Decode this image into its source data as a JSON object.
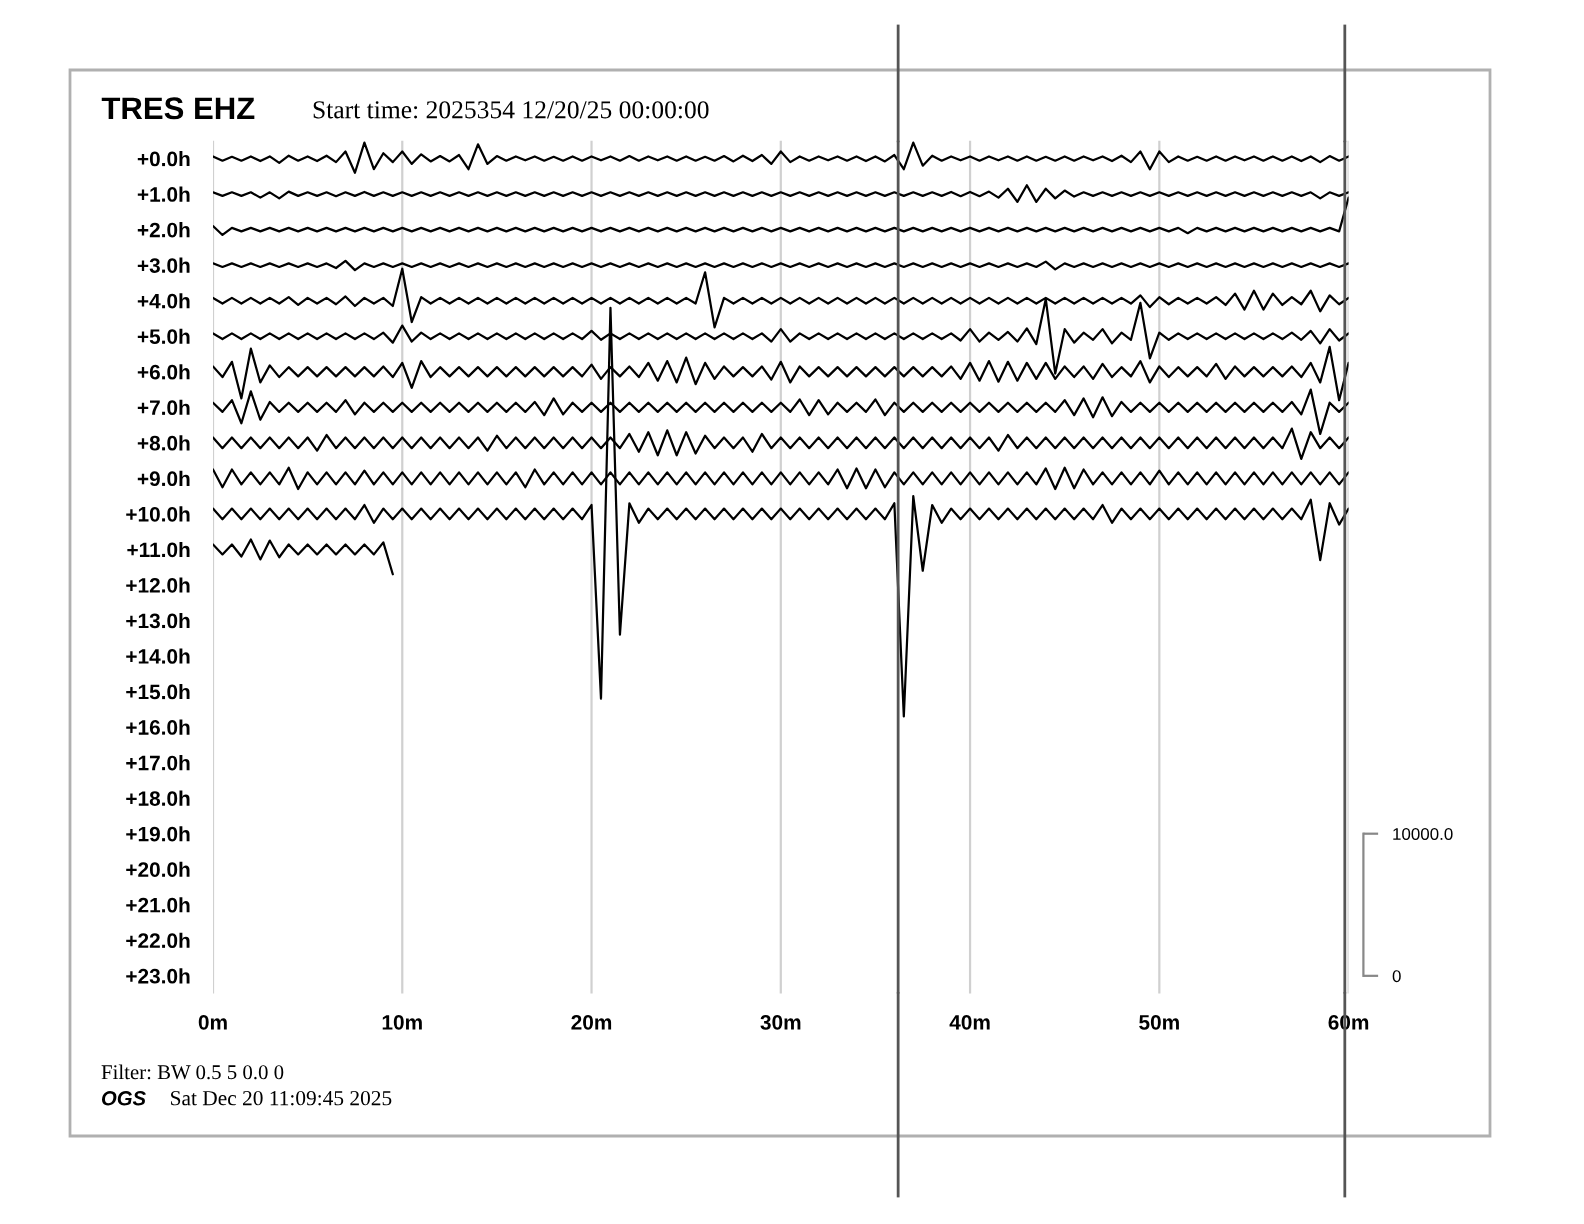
{
  "chart_data": {
    "type": "line",
    "title": "TRES EHZ",
    "subtitle": "Start time: 2025354 12/20/25 00:00:00",
    "annotations": [
      "Filter: BW 0.5 5 0.0 0",
      "OGS",
      "Sat Dec 20 11:09:45 2025"
    ],
    "x": [
      0,
      0.5,
      1,
      1.5,
      2,
      2.5,
      3,
      3.5,
      4,
      4.5,
      5,
      5.5,
      6,
      6.5,
      7,
      7.5,
      8,
      8.5,
      9,
      9.5,
      10,
      10.5,
      11,
      11.5,
      12,
      12.5,
      13,
      13.5,
      14,
      14.5,
      15,
      15.5,
      16,
      16.5,
      17,
      17.5,
      18,
      18.5,
      19,
      19.5,
      20,
      20.5,
      21,
      21.5,
      22,
      22.5,
      23,
      23.5,
      24,
      24.5,
      25,
      25.5,
      26,
      26.5,
      27,
      27.5,
      28,
      28.5,
      29,
      29.5,
      30,
      30.5,
      31,
      31.5,
      32,
      32.5,
      33,
      33.5,
      34,
      34.5,
      35,
      35.5,
      36,
      36.5,
      37,
      37.5,
      38,
      38.5,
      39,
      39.5,
      40,
      40.5,
      41,
      41.5,
      42,
      42.5,
      43,
      43.5,
      44,
      44.5,
      45,
      45.5,
      46,
      46.5,
      47,
      47.5,
      48,
      48.5,
      49,
      49.5,
      50,
      50.5,
      51,
      51.5,
      52,
      52.5,
      53,
      53.5,
      54,
      54.5,
      55,
      55.5,
      56,
      56.5,
      57,
      57.5,
      58,
      58.5,
      59,
      59.5,
      60
    ],
    "xlim": [
      0,
      60
    ],
    "xticks": [
      {
        "value": 0,
        "label": "0m"
      },
      {
        "value": 10,
        "label": "10m"
      },
      {
        "value": 20,
        "label": "20m"
      },
      {
        "value": 30,
        "label": "30m"
      },
      {
        "value": 40,
        "label": "40m"
      },
      {
        "value": 50,
        "label": "50m"
      },
      {
        "value": 60,
        "label": "60m"
      }
    ],
    "ylim": [
      23.5,
      -0.5
    ],
    "yticks": [
      {
        "value": 0,
        "label": "+0.0h"
      },
      {
        "value": 1,
        "label": "+1.0h"
      },
      {
        "value": 2,
        "label": "+2.0h"
      },
      {
        "value": 3,
        "label": "+3.0h"
      },
      {
        "value": 4,
        "label": "+4.0h"
      },
      {
        "value": 5,
        "label": "+5.0h"
      },
      {
        "value": 6,
        "label": "+6.0h"
      },
      {
        "value": 7,
        "label": "+7.0h"
      },
      {
        "value": 8,
        "label": "+8.0h"
      },
      {
        "value": 9,
        "label": "+9.0h"
      },
      {
        "value": 10,
        "label": "+10.0h"
      },
      {
        "value": 11,
        "label": "+11.0h"
      },
      {
        "value": 12,
        "label": "+12.0h"
      },
      {
        "value": 13,
        "label": "+13.0h"
      },
      {
        "value": 14,
        "label": "+14.0h"
      },
      {
        "value": 15,
        "label": "+15.0h"
      },
      {
        "value": 16,
        "label": "+16.0h"
      },
      {
        "value": 17,
        "label": "+17.0h"
      },
      {
        "value": 18,
        "label": "+18.0h"
      },
      {
        "value": 19,
        "label": "+19.0h"
      },
      {
        "value": 20,
        "label": "+20.0h"
      },
      {
        "value": 21,
        "label": "+21.0h"
      },
      {
        "value": 22,
        "label": "+22.0h"
      },
      {
        "value": 23,
        "label": "+23.0h"
      }
    ],
    "y2lim": [
      -1250,
      58750
    ],
    "y2ticks": [
      0,
      {
        "value": 10000,
        "label": "10000.0"
      }
    ],
    "grid": "x",
    "ref_lines": [
      {
        "axis": "x",
        "value": 36.2,
        "color": "#555555"
      },
      {
        "axis": "x",
        "value": 59.8,
        "color": "#555555"
      }
    ],
    "series": [
      {
        "color": "#000000",
        "values": [
          -0.06,
          0.06,
          -0.05,
          0.06,
          -0.06,
          0.07,
          -0.06,
          0.12,
          -0.08,
          0.06,
          -0.06,
          0.07,
          -0.08,
          0.1,
          -0.2,
          0.4,
          -0.45,
          0.3,
          -0.15,
          0.1,
          -0.2,
          0.15,
          -0.12,
          0.08,
          -0.07,
          0.08,
          -0.1,
          0.3,
          -0.4,
          0.15,
          -0.07,
          0.06,
          -0.06,
          0.05,
          -0.06,
          0.06,
          -0.05,
          0.06,
          -0.06,
          0.06,
          -0.06,
          0.05,
          -0.06,
          0.06,
          -0.07,
          0.06,
          -0.06,
          0.05,
          -0.06,
          0.06,
          -0.06,
          0.06,
          -0.05,
          0.06,
          -0.07,
          0.08,
          -0.08,
          0.07,
          -0.1,
          0.15,
          -0.2,
          0.1,
          -0.06,
          0.06,
          -0.06,
          0.05,
          -0.06,
          0.06,
          -0.06,
          0.07,
          -0.06,
          0.08,
          -0.1,
          0.3,
          -0.45,
          0.2,
          -0.08,
          0.06,
          -0.06,
          0.05,
          -0.06,
          0.06,
          -0.06,
          0.05,
          -0.06,
          0.06,
          -0.06,
          0.06,
          -0.05,
          0.06,
          -0.06,
          0.06,
          -0.06,
          0.05,
          -0.06,
          0.07,
          -0.08,
          0.1,
          -0.2,
          0.3,
          -0.2,
          0.1,
          -0.06,
          0.06,
          -0.05,
          0.06,
          -0.06,
          0.06,
          -0.06,
          0.05,
          -0.06,
          0.06,
          -0.06,
          0.06,
          -0.06,
          0.07,
          -0.06,
          0.1,
          -0.07,
          0.06,
          -0.06
        ]
      },
      {
        "color": "#000000",
        "values": [
          0.95,
          1.05,
          0.95,
          1.05,
          0.95,
          1.1,
          0.95,
          1.12,
          0.93,
          1.05,
          0.95,
          1.05,
          0.95,
          1.06,
          0.95,
          1.05,
          0.94,
          1.05,
          0.95,
          1.05,
          0.95,
          1.05,
          0.95,
          1.05,
          0.95,
          1.05,
          0.95,
          1.05,
          0.95,
          1.05,
          0.95,
          1.05,
          0.95,
          1.05,
          0.95,
          1.05,
          0.95,
          1.05,
          0.95,
          1.05,
          0.95,
          1.05,
          0.95,
          1.05,
          0.95,
          1.05,
          0.95,
          1.05,
          0.95,
          1.05,
          0.95,
          1.05,
          0.95,
          1.05,
          0.95,
          1.05,
          0.95,
          1.05,
          0.95,
          1.05,
          0.95,
          1.05,
          0.95,
          1.05,
          0.95,
          1.05,
          0.95,
          1.05,
          0.95,
          1.05,
          0.95,
          1.05,
          0.95,
          1.05,
          0.95,
          1.05,
          0.95,
          1.05,
          0.94,
          1.06,
          0.94,
          1.06,
          0.93,
          1.1,
          0.85,
          1.22,
          0.75,
          1.22,
          0.85,
          1.12,
          0.9,
          1.07,
          0.95,
          1.05,
          0.95,
          1.05,
          0.95,
          1.05,
          0.95,
          1.05,
          0.95,
          1.05,
          0.95,
          1.05,
          0.95,
          1.05,
          0.95,
          1.05,
          0.95,
          1.05,
          0.95,
          1.05,
          0.95,
          1.05,
          0.95,
          1.05,
          0.95,
          1.12,
          0.95,
          1.05,
          0.95
        ]
      },
      {
        "color": "#000000",
        "values": [
          1.9,
          2.15,
          1.95,
          2.05,
          1.95,
          2.05,
          1.95,
          2.05,
          1.95,
          2.05,
          1.95,
          2.05,
          1.95,
          2.05,
          1.95,
          2.05,
          1.95,
          2.05,
          1.95,
          2.05,
          1.95,
          2.05,
          1.95,
          2.05,
          1.95,
          2.05,
          1.95,
          2.05,
          1.95,
          2.05,
          1.95,
          2.05,
          1.95,
          2.05,
          1.95,
          2.05,
          1.95,
          2.05,
          1.95,
          2.05,
          1.95,
          2.05,
          1.95,
          2.05,
          1.95,
          2.05,
          1.95,
          2.05,
          1.95,
          2.05,
          1.95,
          2.05,
          1.95,
          2.05,
          1.95,
          2.05,
          1.95,
          2.05,
          1.95,
          2.05,
          1.95,
          2.05,
          1.95,
          2.05,
          1.95,
          2.05,
          1.95,
          2.05,
          1.95,
          2.05,
          1.95,
          2.05,
          1.95,
          2.05,
          1.95,
          2.05,
          1.95,
          2.05,
          1.95,
          2.05,
          1.95,
          2.05,
          1.95,
          2.05,
          1.95,
          2.05,
          1.95,
          2.05,
          1.95,
          2.05,
          1.95,
          2.05,
          1.95,
          2.05,
          1.95,
          2.05,
          1.95,
          2.05,
          1.95,
          2.05,
          1.95,
          2.05,
          1.95,
          2.1,
          1.95,
          2.05,
          1.95,
          2.05,
          1.95,
          2.05,
          1.95,
          2.05,
          1.95,
          2.05,
          1.95,
          2.05,
          1.95,
          2.05,
          1.95,
          2.05,
          1.1
        ]
      },
      {
        "color": "#000000",
        "values": [
          2.95,
          3.05,
          2.95,
          3.05,
          2.95,
          3.05,
          2.95,
          3.05,
          2.95,
          3.05,
          2.95,
          3.05,
          2.95,
          3.08,
          2.88,
          3.14,
          2.95,
          3.05,
          2.95,
          3.05,
          2.95,
          3.05,
          2.95,
          3.05,
          2.95,
          3.05,
          2.95,
          3.05,
          2.95,
          3.05,
          2.95,
          3.05,
          2.95,
          3.05,
          2.95,
          3.05,
          2.95,
          3.05,
          2.95,
          3.05,
          2.95,
          3.05,
          2.95,
          3.05,
          2.95,
          3.05,
          2.95,
          3.05,
          2.95,
          3.05,
          2.95,
          3.05,
          2.95,
          3.05,
          2.95,
          3.05,
          2.95,
          3.05,
          2.95,
          3.05,
          2.95,
          3.05,
          2.95,
          3.05,
          2.95,
          3.05,
          2.95,
          3.05,
          2.95,
          3.05,
          2.95,
          3.05,
          2.95,
          3.05,
          2.95,
          3.05,
          2.95,
          3.05,
          2.95,
          3.05,
          2.95,
          3.05,
          2.95,
          3.05,
          2.95,
          3.05,
          2.95,
          3.05,
          2.9,
          3.12,
          2.95,
          3.05,
          2.95,
          3.05,
          2.95,
          3.05,
          2.95,
          3.05,
          2.95,
          3.05,
          2.95,
          3.05,
          2.95,
          3.05,
          2.95,
          3.05,
          2.95,
          3.05,
          2.95,
          3.05,
          2.95,
          3.05,
          2.95,
          3.05,
          2.95,
          3.05,
          2.95,
          3.05,
          2.95,
          3.05,
          2.95
        ]
      },
      {
        "color": "#000000",
        "values": [
          3.92,
          4.08,
          3.92,
          4.08,
          3.92,
          4.08,
          3.92,
          4.08,
          3.9,
          4.12,
          3.92,
          4.08,
          3.92,
          4.1,
          3.88,
          4.15,
          3.92,
          4.08,
          3.92,
          4.15,
          3.1,
          4.6,
          3.9,
          4.08,
          3.92,
          4.08,
          3.92,
          4.08,
          3.92,
          4.08,
          3.92,
          4.08,
          3.92,
          4.08,
          3.92,
          4.08,
          3.92,
          4.08,
          3.92,
          4.08,
          3.92,
          4.08,
          3.92,
          4.08,
          3.92,
          4.08,
          3.92,
          4.08,
          3.92,
          4.08,
          3.92,
          4.08,
          3.2,
          4.75,
          3.92,
          4.08,
          3.92,
          4.08,
          3.92,
          4.08,
          3.92,
          4.08,
          3.92,
          4.08,
          3.92,
          4.08,
          3.92,
          4.08,
          3.92,
          4.08,
          3.92,
          4.08,
          3.92,
          4.08,
          3.92,
          4.08,
          3.92,
          4.08,
          3.92,
          4.08,
          3.92,
          4.08,
          3.92,
          4.08,
          3.92,
          4.08,
          3.92,
          4.08,
          3.92,
          4.08,
          3.92,
          4.08,
          3.92,
          4.08,
          3.92,
          4.08,
          3.92,
          4.08,
          3.85,
          4.18,
          3.9,
          4.1,
          3.92,
          4.08,
          3.92,
          4.08,
          3.9,
          4.12,
          3.8,
          4.25,
          3.72,
          4.25,
          3.8,
          4.12,
          3.9,
          4.1,
          3.72,
          4.3,
          3.85,
          4.1,
          3.92
        ]
      },
      {
        "color": "#000000",
        "values": [
          4.92,
          5.08,
          4.92,
          5.08,
          4.92,
          5.08,
          4.92,
          5.08,
          4.92,
          5.08,
          4.92,
          5.08,
          4.92,
          5.08,
          4.92,
          5.08,
          4.92,
          5.08,
          4.9,
          5.18,
          4.7,
          5.15,
          4.9,
          5.08,
          4.92,
          5.08,
          4.92,
          5.08,
          4.92,
          5.08,
          4.92,
          5.08,
          4.92,
          5.08,
          4.92,
          5.08,
          4.92,
          5.08,
          4.92,
          5.08,
          4.85,
          5.1,
          4.92,
          5.08,
          4.92,
          5.08,
          4.92,
          5.08,
          4.92,
          5.08,
          4.92,
          5.08,
          4.92,
          5.08,
          4.92,
          5.08,
          4.92,
          5.08,
          4.92,
          5.15,
          4.8,
          5.15,
          4.92,
          5.08,
          4.92,
          5.08,
          4.92,
          5.08,
          4.92,
          5.08,
          4.92,
          5.08,
          4.92,
          5.08,
          4.92,
          5.08,
          4.92,
          5.08,
          4.92,
          5.12,
          4.8,
          5.15,
          4.9,
          5.1,
          4.88,
          5.15,
          4.78,
          5.22,
          3.95,
          6.05,
          4.8,
          5.18,
          4.9,
          5.1,
          4.8,
          5.2,
          4.9,
          5.1,
          4.06,
          5.62,
          4.9,
          5.1,
          4.92,
          5.08,
          4.92,
          5.08,
          4.92,
          5.08,
          4.92,
          5.08,
          4.92,
          5.08,
          4.92,
          5.08,
          4.9,
          5.1,
          4.85,
          5.2,
          4.8,
          5.12,
          4.92
        ]
      },
      {
        "color": "#000000",
        "values": [
          5.85,
          6.15,
          5.72,
          6.75,
          5.35,
          6.3,
          5.82,
          6.15,
          5.87,
          6.13,
          5.87,
          6.13,
          5.87,
          6.13,
          5.87,
          6.13,
          5.87,
          6.13,
          5.85,
          6.15,
          5.75,
          6.45,
          5.7,
          6.15,
          5.87,
          6.13,
          5.87,
          6.13,
          5.87,
          6.13,
          5.87,
          6.13,
          5.87,
          6.13,
          5.87,
          6.13,
          5.87,
          6.13,
          5.87,
          6.13,
          5.8,
          6.2,
          5.87,
          6.13,
          5.85,
          6.15,
          5.75,
          6.25,
          5.7,
          6.3,
          5.6,
          6.35,
          5.75,
          6.2,
          5.85,
          6.13,
          5.87,
          6.13,
          5.85,
          6.22,
          5.72,
          6.3,
          5.85,
          6.13,
          5.87,
          6.13,
          5.87,
          6.13,
          5.87,
          6.13,
          5.87,
          6.13,
          5.87,
          6.13,
          5.87,
          6.13,
          5.87,
          6.13,
          5.85,
          6.2,
          5.75,
          6.25,
          5.7,
          6.28,
          5.72,
          6.25,
          5.75,
          6.2,
          5.75,
          6.2,
          5.85,
          6.15,
          5.85,
          6.2,
          5.78,
          6.15,
          5.87,
          6.13,
          5.7,
          6.3,
          5.85,
          6.15,
          5.87,
          6.13,
          5.87,
          6.13,
          5.78,
          6.2,
          5.85,
          6.13,
          5.87,
          6.13,
          5.87,
          6.13,
          5.85,
          6.15,
          5.75,
          6.3,
          5.3,
          6.8,
          5.75
        ]
      },
      {
        "color": "#000000",
        "values": [
          6.87,
          7.13,
          6.8,
          7.45,
          6.55,
          7.35,
          6.85,
          7.13,
          6.87,
          7.13,
          6.87,
          7.13,
          6.87,
          7.13,
          6.8,
          7.2,
          6.87,
          7.13,
          6.87,
          7.13,
          6.87,
          7.13,
          6.87,
          7.13,
          6.87,
          7.13,
          6.87,
          7.13,
          6.87,
          7.13,
          6.87,
          7.13,
          6.87,
          7.13,
          6.85,
          7.22,
          6.75,
          7.2,
          6.87,
          7.13,
          6.87,
          7.13,
          6.87,
          7.13,
          6.87,
          7.13,
          6.87,
          7.13,
          6.87,
          7.13,
          6.87,
          7.13,
          6.87,
          7.13,
          6.87,
          7.13,
          6.87,
          7.13,
          6.87,
          7.13,
          6.87,
          7.13,
          6.78,
          7.22,
          6.8,
          7.2,
          6.87,
          7.13,
          6.87,
          7.13,
          6.78,
          7.22,
          6.87,
          7.13,
          6.87,
          7.13,
          6.87,
          7.13,
          6.87,
          7.13,
          6.87,
          7.13,
          6.87,
          7.13,
          6.87,
          7.13,
          6.87,
          7.13,
          6.87,
          7.13,
          6.8,
          7.22,
          6.75,
          7.28,
          6.72,
          7.25,
          6.85,
          7.13,
          6.87,
          7.13,
          6.87,
          7.13,
          6.87,
          7.13,
          6.87,
          7.13,
          6.87,
          7.13,
          6.87,
          7.13,
          6.87,
          7.13,
          6.87,
          7.13,
          6.85,
          7.2,
          6.5,
          7.75,
          6.87,
          7.13,
          6.87
        ]
      },
      {
        "color": "#000000",
        "values": [
          7.85,
          8.15,
          7.85,
          8.15,
          7.85,
          8.15,
          7.85,
          8.15,
          7.85,
          8.15,
          7.85,
          8.22,
          7.78,
          8.15,
          7.85,
          8.15,
          7.85,
          8.15,
          7.85,
          8.15,
          7.85,
          8.15,
          7.85,
          8.15,
          7.85,
          8.15,
          7.85,
          8.15,
          7.85,
          8.22,
          7.8,
          8.15,
          7.85,
          8.15,
          7.85,
          8.15,
          7.85,
          8.15,
          7.85,
          8.15,
          7.85,
          8.15,
          7.85,
          8.15,
          7.75,
          8.25,
          7.7,
          8.35,
          7.65,
          8.35,
          7.7,
          8.3,
          7.8,
          8.15,
          7.85,
          8.15,
          7.85,
          8.25,
          7.75,
          8.15,
          7.85,
          8.15,
          7.85,
          8.15,
          7.85,
          8.15,
          7.85,
          8.15,
          7.85,
          8.15,
          7.85,
          8.15,
          7.85,
          8.15,
          7.85,
          8.15,
          7.85,
          8.15,
          7.85,
          8.15,
          7.85,
          8.15,
          7.85,
          8.22,
          7.78,
          8.15,
          7.85,
          8.15,
          7.85,
          8.15,
          7.85,
          8.15,
          7.85,
          8.15,
          7.85,
          8.15,
          7.85,
          8.15,
          7.85,
          8.15,
          7.85,
          8.15,
          7.85,
          8.15,
          7.85,
          8.15,
          7.85,
          8.15,
          7.85,
          8.15,
          7.85,
          8.15,
          7.85,
          8.15,
          7.6,
          8.45,
          7.7,
          8.15,
          7.85,
          8.15,
          7.85
        ]
      },
      {
        "color": "#000000",
        "values": [
          8.75,
          9.25,
          8.75,
          9.17,
          8.83,
          9.17,
          8.83,
          9.17,
          8.7,
          9.3,
          8.83,
          9.17,
          8.83,
          9.17,
          8.83,
          9.17,
          8.78,
          9.17,
          8.83,
          9.17,
          8.83,
          9.17,
          8.83,
          9.17,
          8.83,
          9.17,
          8.83,
          9.17,
          8.83,
          9.17,
          8.83,
          9.17,
          8.83,
          9.25,
          8.75,
          9.17,
          8.83,
          9.17,
          8.83,
          9.17,
          8.83,
          9.17,
          8.83,
          9.17,
          8.83,
          9.17,
          8.83,
          9.17,
          8.83,
          9.17,
          8.83,
          9.17,
          8.83,
          9.17,
          8.83,
          9.17,
          8.83,
          9.17,
          8.83,
          9.17,
          8.83,
          9.17,
          8.83,
          9.17,
          8.83,
          9.17,
          8.75,
          9.28,
          8.72,
          9.28,
          8.75,
          9.25,
          8.83,
          9.17,
          8.83,
          9.17,
          8.83,
          9.17,
          8.83,
          9.17,
          8.83,
          9.17,
          8.83,
          9.17,
          8.83,
          9.17,
          8.83,
          9.17,
          8.72,
          9.3,
          8.7,
          9.28,
          8.75,
          9.17,
          8.83,
          9.17,
          8.83,
          9.17,
          8.83,
          9.17,
          8.78,
          9.17,
          8.83,
          9.17,
          8.83,
          9.17,
          8.83,
          9.17,
          8.83,
          9.17,
          8.83,
          9.17,
          8.83,
          9.17,
          8.83,
          9.17,
          8.83,
          9.17,
          8.83,
          9.17,
          8.83
        ]
      },
      {
        "color": "#000000",
        "values": [
          9.85,
          10.15,
          9.85,
          10.15,
          9.85,
          10.15,
          9.85,
          10.15,
          9.85,
          10.15,
          9.85,
          10.15,
          9.85,
          10.15,
          9.85,
          10.15,
          9.75,
          10.25,
          9.85,
          10.15,
          9.85,
          10.15,
          9.85,
          10.15,
          9.85,
          10.15,
          9.85,
          10.15,
          9.85,
          10.15,
          9.85,
          10.15,
          9.85,
          10.15,
          9.85,
          10.15,
          9.85,
          10.15,
          9.85,
          10.15,
          9.75,
          15.2,
          4.2,
          13.4,
          9.7,
          10.25,
          9.85,
          10.15,
          9.85,
          10.15,
          9.85,
          10.15,
          9.85,
          10.15,
          9.85,
          10.15,
          9.85,
          10.15,
          9.85,
          10.15,
          9.85,
          10.15,
          9.85,
          10.15,
          9.85,
          10.15,
          9.85,
          10.15,
          9.85,
          10.15,
          9.85,
          10.15,
          9.7,
          15.7,
          9.5,
          11.6,
          9.75,
          10.25,
          9.85,
          10.15,
          9.85,
          10.15,
          9.85,
          10.15,
          9.85,
          10.15,
          9.85,
          10.15,
          9.85,
          10.15,
          9.85,
          10.15,
          9.85,
          10.15,
          9.75,
          10.25,
          9.85,
          10.15,
          9.85,
          10.15,
          9.85,
          10.15,
          9.85,
          10.15,
          9.85,
          10.15,
          9.85,
          10.15,
          9.85,
          10.15,
          9.85,
          10.15,
          9.85,
          10.15,
          9.85,
          10.15,
          9.6,
          11.3,
          9.7,
          10.3,
          9.85
        ]
      },
      {
        "color": "#000000",
        "x": [
          0,
          0.5,
          1,
          1.5,
          2,
          2.5,
          3,
          3.5,
          4,
          4.5,
          5,
          5.5,
          6,
          6.5,
          7,
          7.5,
          8,
          8.5,
          9,
          9.5
        ],
        "values": [
          10.86,
          11.14,
          10.86,
          11.2,
          10.72,
          11.28,
          10.75,
          11.22,
          10.86,
          11.14,
          10.86,
          11.14,
          10.86,
          11.14,
          10.86,
          11.14,
          10.86,
          11.14,
          10.8,
          11.7
        ]
      }
    ]
  }
}
